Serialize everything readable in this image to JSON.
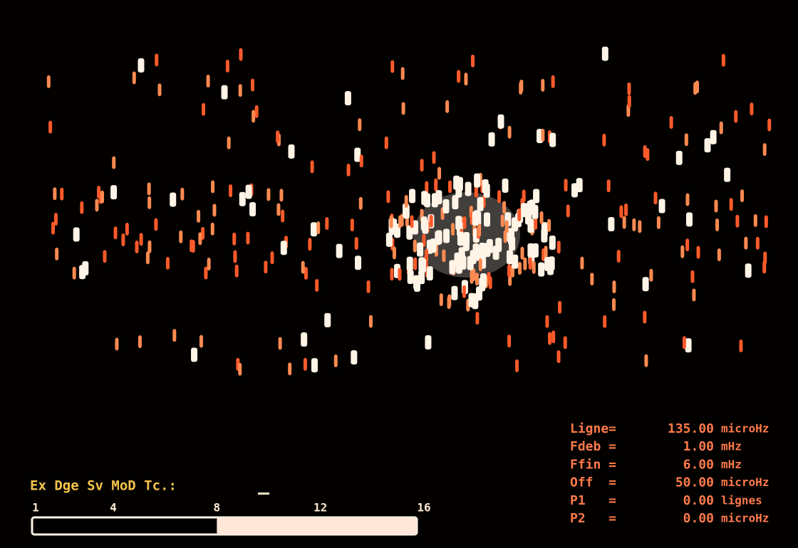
{
  "menu": "Ex Dge Sv MoD Tc.:",
  "scale": {
    "ticks": [
      1,
      4,
      8,
      12,
      16
    ],
    "level": 8
  },
  "params": [
    {
      "name": "Ligne=",
      "value": "135.00",
      "unit": "microHz"
    },
    {
      "name": "Fdeb =",
      "value": "1.00",
      "unit": "mHz"
    },
    {
      "name": "Ffin =",
      "value": "6.00",
      "unit": "mHz"
    },
    {
      "name": "Off  =",
      "value": "50.00",
      "unit": "microHz"
    },
    {
      "name": "P1   =",
      "value": "0.00",
      "unit": "lignes"
    },
    {
      "name": "P2   =",
      "value": "0.00",
      "unit": "microHz"
    }
  ]
}
